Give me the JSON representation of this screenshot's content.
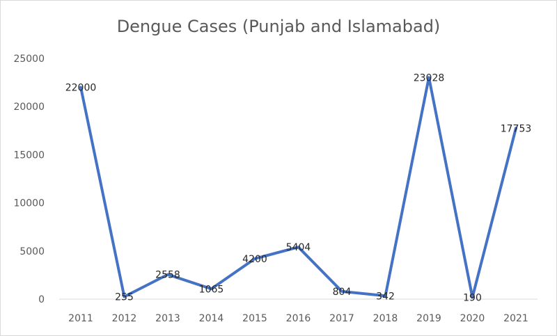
{
  "chart_data": {
    "type": "line",
    "title": "Dengue Cases (Punjab and Islamabad)",
    "xlabel": "",
    "ylabel": "",
    "categories": [
      "2011",
      "2012",
      "2013",
      "2014",
      "2015",
      "2016",
      "2017",
      "2018",
      "2019",
      "2020",
      "2021"
    ],
    "series": [
      {
        "values": [
          22000,
          255,
          2558,
          1065,
          4200,
          5404,
          804,
          342,
          23028,
          190,
          17753
        ]
      }
    ],
    "ylim": [
      0,
      25000
    ],
    "yticks": [
      "0",
      "5000",
      "10000",
      "15000",
      "20000",
      "25000"
    ],
    "data_labels": [
      "22000",
      "255",
      "2558",
      "1065",
      "4200",
      "5404",
      "804",
      "342",
      "23028",
      "190",
      "17753"
    ],
    "grid": false,
    "legend": "none",
    "line_color": "#4472C4"
  }
}
